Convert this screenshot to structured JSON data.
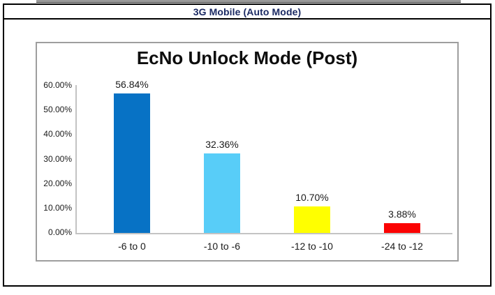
{
  "header": {
    "title": "3G Mobile (Auto Mode)",
    "title_color": "#1b2a63"
  },
  "chart_data": {
    "type": "bar",
    "title": "EcNo Unlock Mode (Post)",
    "categories": [
      "-6 to 0",
      "-10 to -6",
      "-12 to -10",
      "-24 to -12"
    ],
    "values": [
      56.84,
      32.36,
      10.7,
      3.88
    ],
    "value_labels": [
      "56.84%",
      "32.36%",
      "10.70%",
      "3.88%"
    ],
    "bar_colors": [
      "#0772c5",
      "#58cdf8",
      "#ffff00",
      "#fb0303"
    ],
    "xlabel": "",
    "ylabel": "",
    "ylim": [
      0,
      60
    ],
    "y_ticks": [
      {
        "value": 60,
        "label": "60.00%"
      },
      {
        "value": 50,
        "label": "50.00%"
      },
      {
        "value": 40,
        "label": "40.00%"
      },
      {
        "value": 30,
        "label": "30.00%"
      },
      {
        "value": 20,
        "label": "20.00%"
      },
      {
        "value": 10,
        "label": "10.00%"
      },
      {
        "value": 0,
        "label": "0.00%"
      }
    ],
    "grid": false,
    "legend": false
  }
}
